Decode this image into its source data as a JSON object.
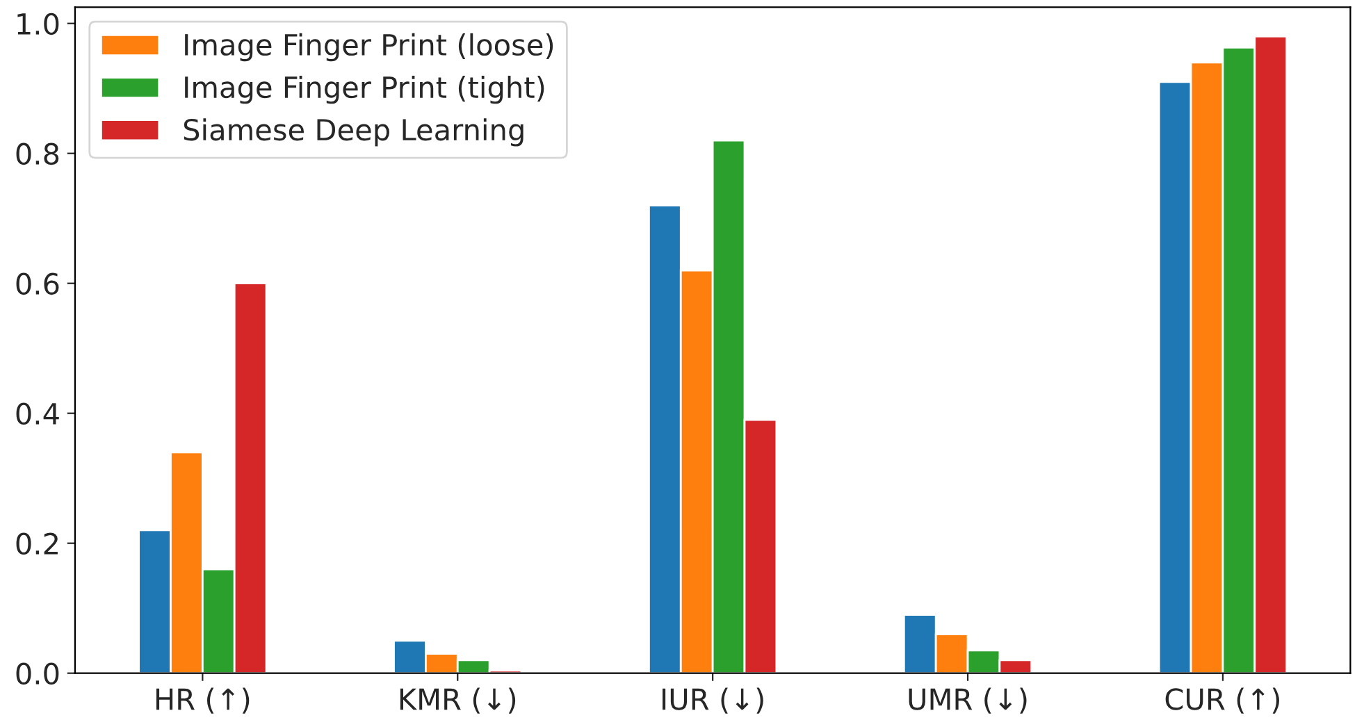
{
  "chart_data": {
    "type": "bar",
    "categories": [
      "HR (↑)",
      "KMR (↓)",
      "IUR (↓)",
      "UMR (↓)",
      "CUR (↑)"
    ],
    "series": [
      {
        "color": "#1f77b4",
        "values": [
          0.22,
          0.05,
          0.72,
          0.09,
          0.91
        ]
      },
      {
        "name": "Image Finger Print (loose)",
        "color": "#ff7f0e",
        "values": [
          0.34,
          0.03,
          0.62,
          0.06,
          0.94
        ]
      },
      {
        "name": "Image Finger Print (tight)",
        "color": "#2ca02c",
        "values": [
          0.16,
          0.02,
          0.82,
          0.035,
          0.963
        ]
      },
      {
        "name": "Siamese Deep Learning",
        "color": "#d62728",
        "values": [
          0.6,
          0.004,
          0.39,
          0.02,
          0.98
        ]
      }
    ],
    "ylim": [
      0,
      1.025
    ],
    "yticks": [
      {
        "value": 0,
        "label": "0.0"
      },
      {
        "value": 0.2,
        "label": "0.2"
      },
      {
        "value": 0.4,
        "label": "0.4"
      },
      {
        "value": 0.6,
        "label": "0.6"
      },
      {
        "value": 0.8,
        "label": "0.8"
      },
      {
        "value": 1.0,
        "label": "1.0"
      }
    ],
    "grid": false,
    "legend": "top left"
  }
}
